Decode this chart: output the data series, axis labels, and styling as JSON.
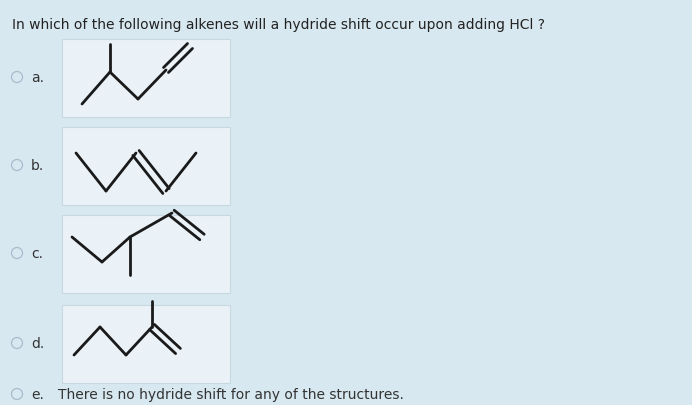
{
  "background_color": "#d8e8f0",
  "box_color": "#eaf2f8",
  "question": "In which of the following alkenes will a hydride shift occur upon adding HCl ?",
  "options": [
    "a.",
    "b.",
    "c.",
    "d.",
    "e."
  ],
  "option_e_text": "There is no hydride shift for any of the structures.",
  "question_fontsize": 10.0,
  "option_fontsize": 10.0,
  "line_color": "#1a1a1a",
  "line_width": 2.0,
  "radio_color": "#aabbcc",
  "radio_fill": "#d8e8f0"
}
